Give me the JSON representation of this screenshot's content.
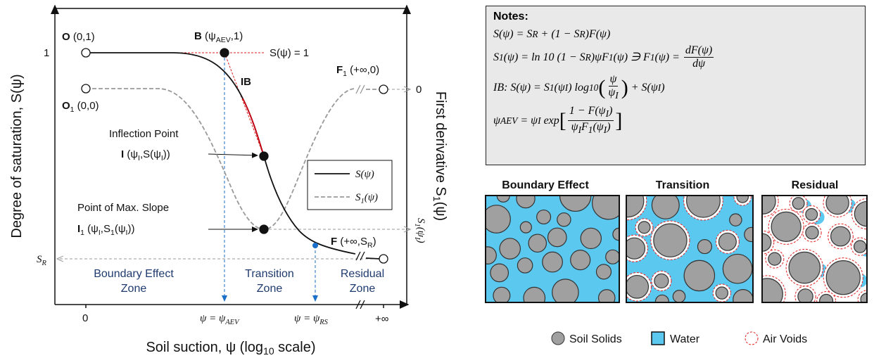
{
  "plot": {
    "y_axis_label": "Degree of saturation, S(ψ)",
    "y2_axis_label": [
      "First derivative S",
      {
        "sub": "1"
      },
      "(ψ)"
    ],
    "x_axis_label": [
      "Soil suction, ψ (log",
      {
        "sub": "10"
      },
      " scale)"
    ],
    "labels": {
      "o": [
        {
          "b": "O"
        },
        " (0,1)"
      ],
      "o1": [
        {
          "b": "O"
        },
        {
          "sub": "1"
        },
        " (0,0)"
      ],
      "b": [
        {
          "b": "B"
        },
        " (ψ",
        {
          "sub": "AEV"
        },
        ",1)"
      ],
      "s_one": "S(ψ) = 1",
      "ib": [
        {
          "b": "IB"
        }
      ],
      "f1": [
        {
          "b": "F"
        },
        {
          "sub": "1"
        },
        " (+∞,0)"
      ],
      "inflection": "Inflection Point",
      "i": [
        {
          "b": "I"
        },
        " (ψ",
        {
          "sub": "I"
        },
        ",S(ψ",
        {
          "sub": "I"
        },
        "))"
      ],
      "max_slope": "Point of Max. Slope",
      "i1": [
        {
          "b": "I"
        },
        {
          "sub": "1"
        },
        " (ψ",
        {
          "sub": "I"
        },
        ",S",
        {
          "sub": "1"
        },
        "(ψ",
        {
          "sub": "I"
        },
        "))"
      ],
      "f": [
        {
          "b": "F"
        },
        " (+∞,S",
        {
          "sub": "R"
        },
        ")"
      ],
      "sr": [
        "S",
        {
          "sub": "R"
        }
      ],
      "s1_psi_i": [
        "S",
        {
          "sub": "1"
        },
        "(ψ",
        {
          "sub": "I"
        },
        ")"
      ]
    },
    "ticks": {
      "y_one": "1",
      "x_zero": "0",
      "x_inf": "+∞",
      "y2_zero": "0",
      "psi_aev": [
        "ψ = ψ",
        {
          "sub": "AEV"
        }
      ],
      "psi_rs": [
        "ψ = ψ",
        {
          "sub": "RS"
        }
      ]
    },
    "zones": [
      [
        "Boundary Effect",
        "Zone"
      ],
      [
        "Transition",
        "Zone"
      ],
      [
        "Residual",
        "Zone"
      ]
    ],
    "legend": [
      [
        "S(ψ)"
      ],
      [
        "S",
        {
          "sub": "1"
        },
        "(ψ)"
      ]
    ]
  },
  "notes": {
    "title": "Notes:",
    "equations": [
      [
        "S(ψ) = S",
        {
          "sub": "R"
        },
        " + (1 − S",
        {
          "sub": "R"
        },
        ")F(ψ)"
      ],
      [
        "S",
        {
          "sub": "1"
        },
        "(ψ) = ln 10 (1 − S",
        {
          "sub": "R"
        },
        ")ψF",
        {
          "sub": "1"
        },
        "(ψ) ∋ F",
        {
          "sub": "1"
        },
        "(ψ) = ",
        {
          "frac": {
            "num": [
              "dF(ψ)"
            ],
            "den": [
              "dψ"
            ]
          }
        }
      ],
      [
        "IB: S(ψ) = S",
        {
          "sub": "1"
        },
        "(ψ",
        {
          "sub": "I"
        },
        ") log",
        {
          "sub": "10"
        },
        {
          "big": "("
        },
        {
          "frac": {
            "num": [
              "ψ"
            ],
            "den": [
              "ψ",
              {
                "sub": "I"
              }
            ]
          }
        },
        {
          "big": ")"
        },
        " + S(ψ",
        {
          "sub": "I"
        },
        ")"
      ],
      [
        "ψ",
        {
          "sub": "AEV"
        },
        " = ψ",
        {
          "sub": "I"
        },
        " exp",
        {
          "big": "["
        },
        {
          "frac": {
            "num": [
              "1 − F(ψ",
              {
                "sub": "I"
              },
              ")"
            ],
            "den": [
              "ψ",
              {
                "sub": "I"
              },
              "F",
              {
                "sub": "1"
              },
              "(ψ",
              {
                "sub": "I"
              },
              ")"
            ]
          }
        },
        {
          "big": "]"
        }
      ]
    ]
  },
  "panels": [
    {
      "title": "Boundary Effect"
    },
    {
      "title": "Transition"
    },
    {
      "title": "Residual"
    }
  ],
  "legend": [
    "Soil Solids",
    "Water",
    "Air Voids"
  ]
}
